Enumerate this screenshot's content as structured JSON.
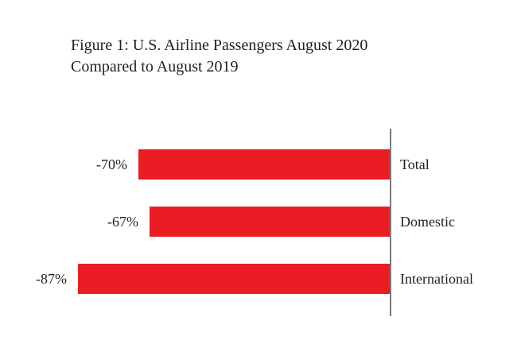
{
  "title": {
    "line1": "Figure 1: U.S. Airline Passengers August 2020",
    "line2": "Compared to August 2019"
  },
  "chart_data": {
    "type": "bar",
    "orientation": "horizontal",
    "title": "Figure 1: U.S. Airline Passengers August 2020 Compared to August 2019",
    "categories": [
      "Total",
      "Domestic",
      "International"
    ],
    "values": [
      -70,
      -67,
      -87
    ],
    "value_labels": [
      "-70%",
      "-67%",
      "-87%"
    ],
    "unit": "percent",
    "xlabel": "",
    "ylabel": "",
    "xlim": [
      -100,
      0
    ],
    "grid": false,
    "legend": false,
    "bar_color": "#ec1c24",
    "axis_line_color": "#7a7a7a",
    "text_color": "#1f1f1f",
    "category_label_position": "right-of-axis",
    "value_label_position": "left-of-bar"
  }
}
